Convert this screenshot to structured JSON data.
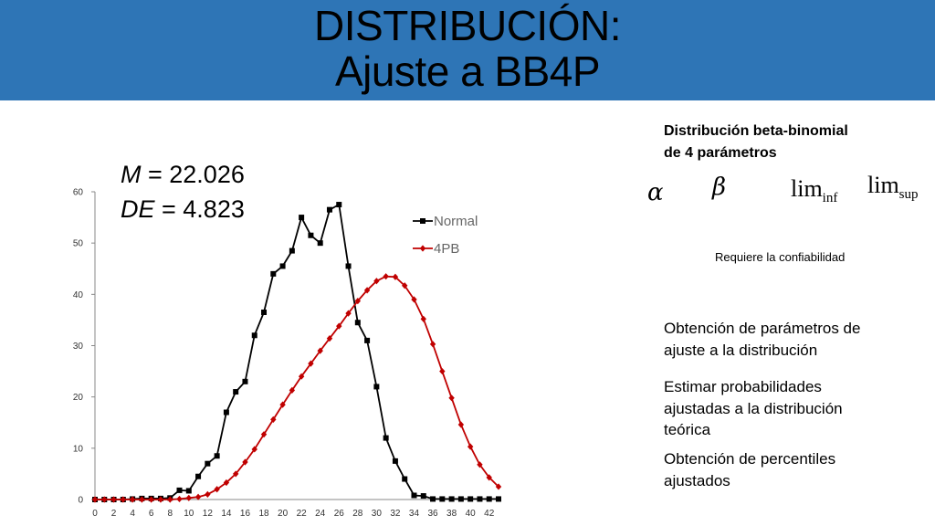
{
  "header": {
    "title_line1": "DISTRIBUCIÓN:",
    "title_line2": "Ajuste a BB4P",
    "bg_color": "#2e75b6"
  },
  "stats": {
    "m_label": "M",
    "m_value": " = 22.026",
    "de_label": "DE",
    "de_value": " = 4.823"
  },
  "side_panel": {
    "heading_line1": "Distribución beta-binomial",
    "heading_line2": "de 4 parámetros",
    "symbols": {
      "alpha": "α",
      "beta": "β",
      "lim": "lim",
      "inf": "inf",
      "sup": "sup"
    },
    "note": "Requiere la confiabilidad",
    "item1_line1": "Obtención de parámetros de",
    "item1_line2": "ajuste a la distribución",
    "item2_line1": "Estimar probabilidades",
    "item2_line2": "ajustadas a la distribución",
    "item2_line3": "teórica",
    "item3_line1": "Obtención de percentiles",
    "item3_line2": "ajustados"
  },
  "chart_data": {
    "type": "line",
    "ylim": [
      0,
      60
    ],
    "xlim": [
      0,
      43
    ],
    "y_ticks": [
      0,
      10,
      20,
      30,
      40,
      50,
      60
    ],
    "x_ticks": [
      0,
      2,
      4,
      6,
      8,
      10,
      12,
      14,
      16,
      18,
      20,
      22,
      24,
      26,
      28,
      30,
      32,
      34,
      36,
      38,
      40,
      42
    ],
    "legend": "top-right",
    "series": [
      {
        "name": "Normal",
        "color": "#000000",
        "marker": "square",
        "x": [
          0,
          1,
          2,
          3,
          4,
          5,
          6,
          7,
          8,
          9,
          10,
          11,
          12,
          13,
          14,
          15,
          16,
          17,
          18,
          19,
          20,
          21,
          22,
          23,
          24,
          25,
          26,
          27,
          28,
          29,
          30,
          31,
          32,
          33,
          34,
          35,
          36,
          37,
          38,
          39,
          40,
          41,
          42,
          43
        ],
        "y": [
          0,
          0,
          0,
          0,
          0.1,
          0.2,
          0.2,
          0.2,
          0.3,
          1.8,
          1.7,
          4.5,
          7.0,
          8.5,
          17.0,
          21.0,
          23.0,
          32.0,
          36.5,
          44.0,
          45.5,
          48.5,
          55.0,
          51.5,
          50.0,
          56.5,
          57.5,
          45.5,
          34.5,
          31.0,
          22.0,
          12.0,
          7.5,
          4.0,
          0.8,
          0.7,
          0.1,
          0.1,
          0.1,
          0.1,
          0.1,
          0.1,
          0.1,
          0.1
        ]
      },
      {
        "name": "4PB",
        "color": "#c00000",
        "marker": "diamond",
        "x": [
          0,
          1,
          2,
          3,
          4,
          5,
          6,
          7,
          8,
          9,
          10,
          11,
          12,
          13,
          14,
          15,
          16,
          17,
          18,
          19,
          20,
          21,
          22,
          23,
          24,
          25,
          26,
          27,
          28,
          29,
          30,
          31,
          32,
          33,
          34,
          35,
          36,
          37,
          38,
          39,
          40,
          41,
          42,
          43
        ],
        "y": [
          0,
          0,
          0,
          0,
          0,
          0,
          0,
          0,
          0,
          0.1,
          0.3,
          0.5,
          1.0,
          2.0,
          3.3,
          5.0,
          7.3,
          9.8,
          12.7,
          15.6,
          18.5,
          21.3,
          24.0,
          26.5,
          29.0,
          31.4,
          33.8,
          36.3,
          38.7,
          40.8,
          42.6,
          43.5,
          43.4,
          41.7,
          39.0,
          35.2,
          30.3,
          25.0,
          19.8,
          14.6,
          10.3,
          6.8,
          4.3,
          2.5
        ]
      }
    ]
  }
}
